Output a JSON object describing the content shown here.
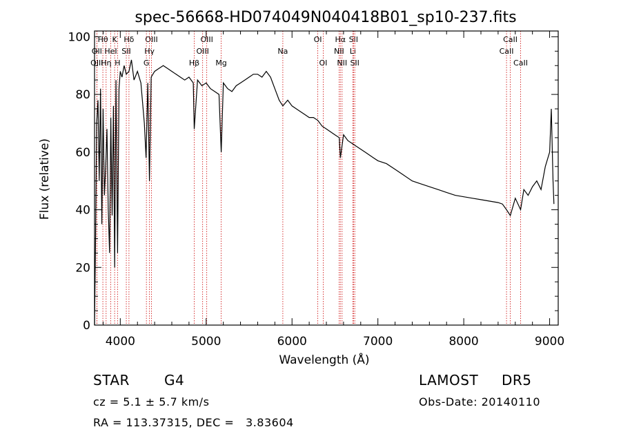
{
  "chart_data": {
    "type": "line",
    "title": "spec-56668-HD074049N040418B01_sp10-237.fits",
    "xlabel": "Wavelength (Å)",
    "ylabel": "Flux (relative)",
    "xlim": [
      3700,
      9100
    ],
    "ylim": [
      0,
      102
    ],
    "x_ticks": [
      4000,
      5000,
      6000,
      7000,
      8000,
      9000
    ],
    "y_ticks": [
      0,
      20,
      40,
      60,
      80,
      100
    ],
    "grid": false,
    "series": [
      {
        "x": [
          3700,
          3712,
          3725,
          3740,
          3755,
          3770,
          3785,
          3800,
          3815,
          3830,
          3845,
          3860,
          3875,
          3890,
          3905,
          3920,
          3935,
          3950,
          3968,
          3985,
          4000,
          4020,
          4045,
          4070,
          4101,
          4130,
          4160,
          4200,
          4240,
          4280,
          4300,
          4320,
          4340,
          4360,
          4400,
          4450,
          4500,
          4550,
          4600,
          4650,
          4700,
          4750,
          4800,
          4850,
          4861,
          4900,
          4950,
          5000,
          5050,
          5100,
          5150,
          5175,
          5200,
          5250,
          5300,
          5350,
          5400,
          5450,
          5500,
          5550,
          5600,
          5650,
          5700,
          5750,
          5800,
          5850,
          5893,
          5950,
          6000,
          6050,
          6100,
          6150,
          6200,
          6250,
          6300,
          6350,
          6400,
          6450,
          6500,
          6550,
          6563,
          6600,
          6650,
          6700,
          6750,
          6800,
          6850,
          6900,
          6950,
          7000,
          7100,
          7200,
          7300,
          7400,
          7500,
          7600,
          7700,
          7800,
          7900,
          8000,
          8100,
          8200,
          8300,
          8400,
          8450,
          8498,
          8542,
          8600,
          8662,
          8700,
          8750,
          8800,
          8850,
          8900,
          8950,
          9000,
          9020,
          9040,
          9050
        ],
        "y": [
          0,
          30,
          70,
          78,
          50,
          82,
          35,
          75,
          45,
          55,
          68,
          40,
          25,
          72,
          38,
          76,
          20,
          85,
          25,
          82,
          88,
          86,
          90,
          87,
          88,
          92,
          85,
          88,
          84,
          70,
          58,
          84,
          50,
          86,
          88,
          89,
          90,
          89,
          88,
          87,
          86,
          85,
          86,
          84,
          68,
          85,
          83,
          84,
          82,
          81,
          80,
          60,
          84,
          82,
          81,
          83,
          84,
          85,
          86,
          87,
          87,
          86,
          88,
          86,
          82,
          78,
          76,
          78,
          76,
          75,
          74,
          73,
          72,
          72,
          71,
          69,
          68,
          67,
          66,
          65,
          58,
          66,
          64,
          63,
          62,
          61,
          60,
          59,
          58,
          57,
          56,
          54,
          52,
          50,
          49,
          48,
          47,
          46,
          45,
          44.5,
          44,
          43.5,
          43,
          42.5,
          42,
          40,
          38,
          44,
          40,
          47,
          45,
          48,
          50,
          47,
          55,
          60,
          75,
          50,
          42
        ]
      }
    ],
    "lines": [
      {
        "name": "Hθ",
        "x": 3797,
        "row": 1
      },
      {
        "name": "OII",
        "x": 3727,
        "row": 2
      },
      {
        "name": "OIII",
        "x": 3727,
        "row": 3
      },
      {
        "name": "K",
        "x": 3934,
        "row": 1
      },
      {
        "name": "HeI",
        "x": 3889,
        "row": 2
      },
      {
        "name": "Hη",
        "x": 3835,
        "row": 3
      },
      {
        "name": "Hδ",
        "x": 4101,
        "row": 1
      },
      {
        "name": "SII",
        "x": 4070,
        "row": 2
      },
      {
        "name": "H",
        "x": 3968,
        "row": 3
      },
      {
        "name": "OIII",
        "x": 4363,
        "row": 1
      },
      {
        "name": "Hγ",
        "x": 4340,
        "row": 2
      },
      {
        "name": "G",
        "x": 4304,
        "row": 3
      },
      {
        "name": "OIII",
        "x": 5007,
        "row": 1
      },
      {
        "name": "OIII",
        "x": 4959,
        "row": 2
      },
      {
        "name": "Hβ",
        "x": 4861,
        "row": 3
      },
      {
        "name": "Mg",
        "x": 5175,
        "row": 3
      },
      {
        "name": "Na",
        "x": 5893,
        "row": 2
      },
      {
        "name": "OI",
        "x": 6300,
        "row": 1
      },
      {
        "name": "OI",
        "x": 6363,
        "row": 3
      },
      {
        "name": "Hα",
        "x": 6563,
        "row": 1
      },
      {
        "name": "NII",
        "x": 6548,
        "row": 2
      },
      {
        "name": "NII",
        "x": 6583,
        "row": 3
      },
      {
        "name": "SII",
        "x": 6716,
        "row": 1
      },
      {
        "name": "Li",
        "x": 6708,
        "row": 2
      },
      {
        "name": "SII",
        "x": 6731,
        "row": 3
      },
      {
        "name": "CaII",
        "x": 8542,
        "row": 1
      },
      {
        "name": "CaII",
        "x": 8498,
        "row": 2
      },
      {
        "name": "CaII",
        "x": 8662,
        "row": 3
      }
    ]
  },
  "info": {
    "object_class": "STAR",
    "subclass": "G4",
    "survey": "LAMOST",
    "release": "DR5",
    "cz_text": "cz = 5.1 ± 5.7 km/s",
    "obs_date": "Obs-Date: 20140110",
    "coords": "RA = 113.37315, DEC =   3.83604"
  },
  "colors": {
    "spectrum": "#000000",
    "line_markers": "#cc0000"
  }
}
